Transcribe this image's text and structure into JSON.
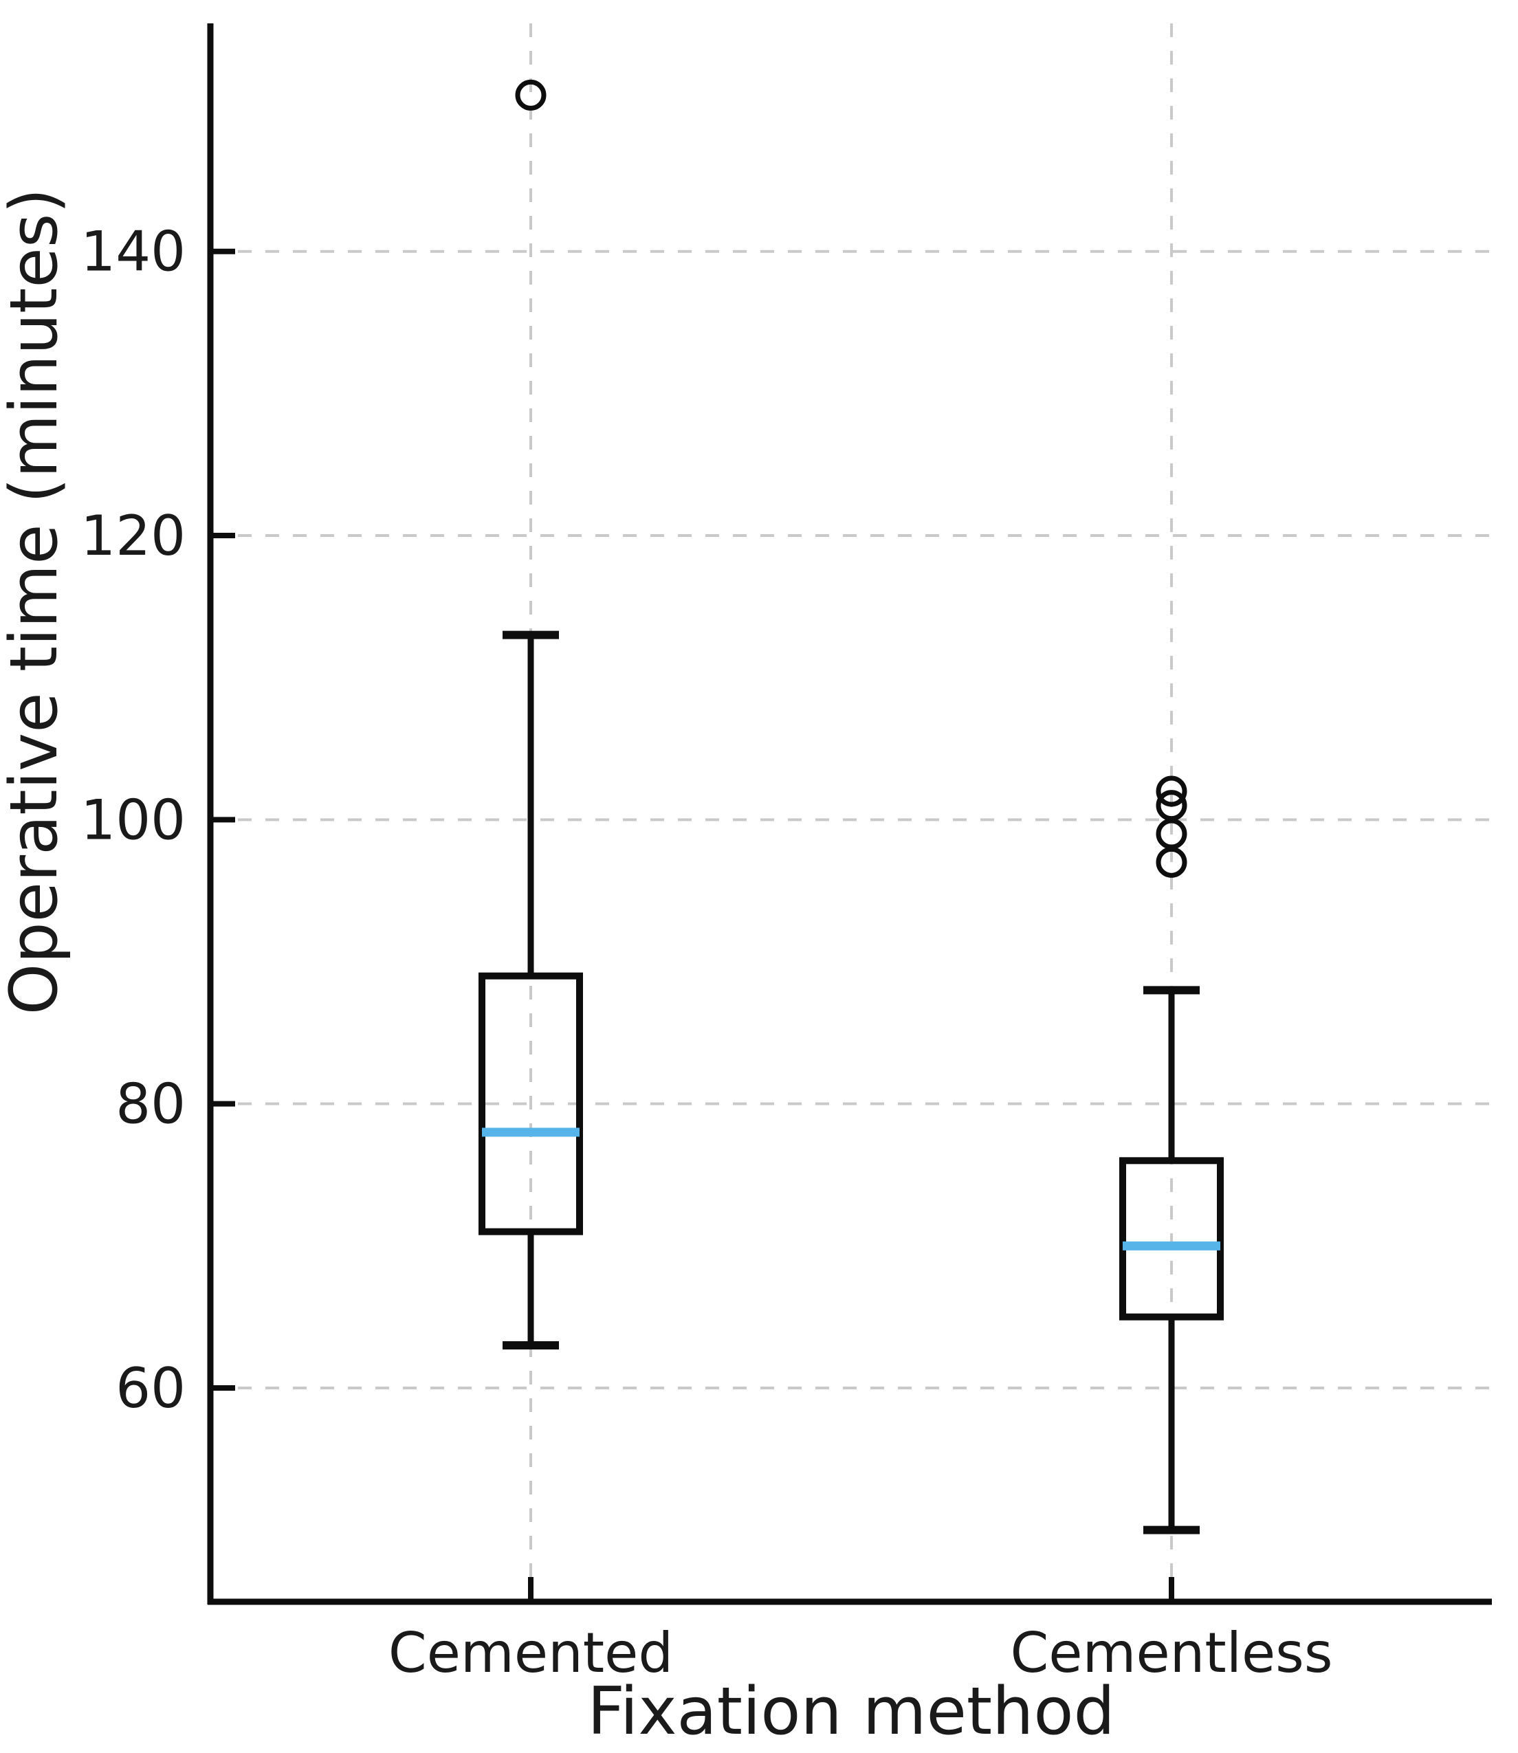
{
  "chart_data": {
    "type": "boxplot",
    "title": "",
    "xlabel": "Fixation method",
    "ylabel": "Operative time (minutes)",
    "categories": [
      "Cemented",
      "Cementless"
    ],
    "series": [
      {
        "name": "Cemented",
        "whisker_low": 63,
        "q1": 71,
        "median": 78,
        "q3": 89,
        "whisker_high": 113,
        "outliers": [
          151
        ]
      },
      {
        "name": "Cementless",
        "whisker_low": 50,
        "q1": 65,
        "median": 70,
        "q3": 76,
        "whisker_high": 88,
        "outliers": [
          97,
          99,
          101,
          102
        ]
      }
    ],
    "yticks": [
      60,
      80,
      100,
      120,
      140
    ],
    "ylim": [
      44.95,
      156.05
    ],
    "xlim": [
      0.5,
      2.5
    ],
    "positions": [
      1,
      2
    ],
    "grid": {
      "horizontal": true,
      "vertical_at_categories": true,
      "style": "dashed"
    },
    "legend": "none",
    "colors": {
      "line": "#0d0d0d",
      "median": "#56B4E9",
      "gridline": "#c9c9c9",
      "text": "#1a1a1a",
      "background": "#ffffff"
    }
  }
}
